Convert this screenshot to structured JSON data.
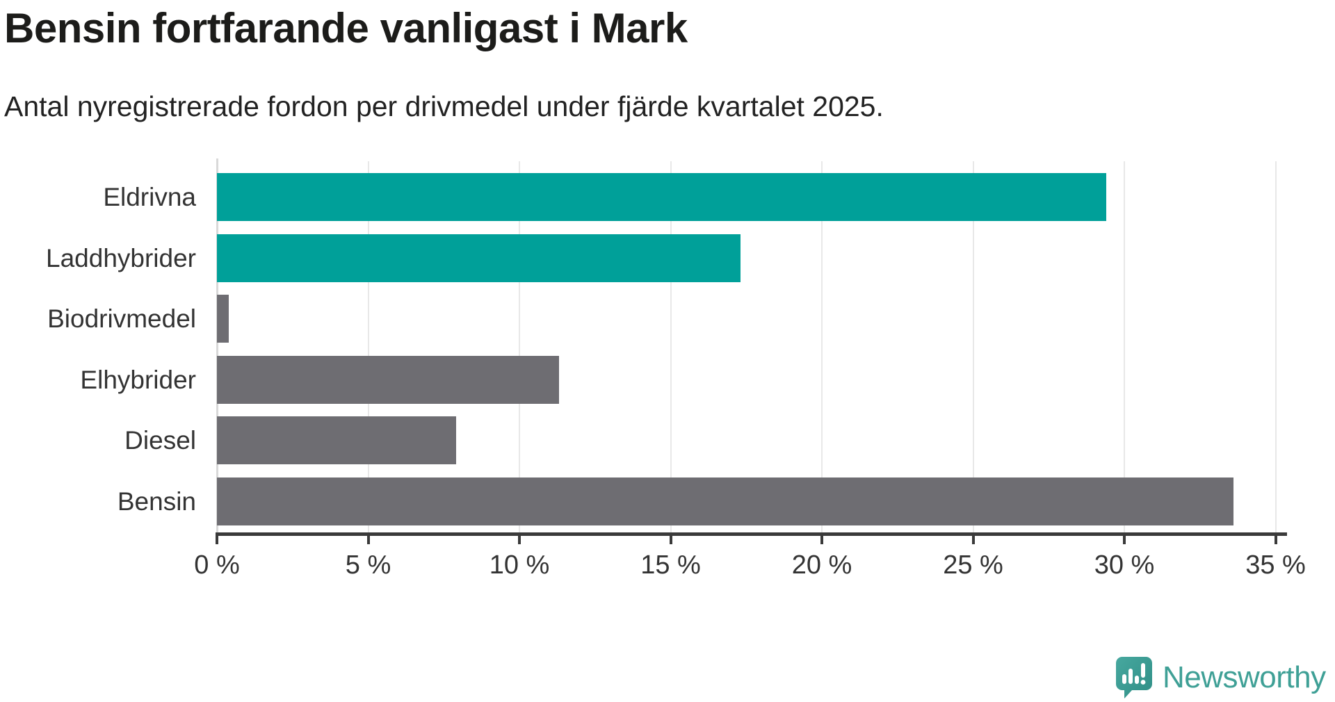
{
  "title": "Bensin fortfarande vanligast i Mark",
  "subtitle": "Antal nyregistrerade fordon per drivmedel under fjärde kvartalet 2025.",
  "chart_data": {
    "type": "bar",
    "orientation": "horizontal",
    "title": "Bensin fortfarande vanligast i Mark",
    "subtitle": "Antal nyregistrerade fordon per drivmedel under fjärde kvartalet 2025.",
    "categories": [
      "Eldrivna",
      "Laddhybrider",
      "Biodrivmedel",
      "Elhybrider",
      "Diesel",
      "Bensin"
    ],
    "values": [
      29.4,
      17.3,
      0.4,
      11.3,
      7.9,
      33.6
    ],
    "unit": "%",
    "bar_colors": [
      "#00a099",
      "#00a099",
      "#6e6d72",
      "#6e6d72",
      "#6e6d72",
      "#6e6d72"
    ],
    "xlabel": "",
    "ylabel": "",
    "xlim": [
      0,
      35.2
    ],
    "xticks": [
      0,
      5,
      10,
      15,
      20,
      25,
      30,
      35
    ],
    "xtick_labels": [
      "0 %",
      "5 %",
      "10 %",
      "15 %",
      "20 %",
      "25 %",
      "30 %",
      "35 %"
    ],
    "grid": true,
    "legend": false
  },
  "colors": {
    "highlight": "#00a099",
    "neutral": "#6e6d72",
    "axis": "#3a3a3a",
    "grid": "#e8e8e8",
    "text": "#333333",
    "title_text": "#1c1c1a",
    "brand": "#3fa096"
  },
  "branding": {
    "name": "Newsworthy",
    "icon": "newsworthy-speech-bubble-chart-icon"
  }
}
